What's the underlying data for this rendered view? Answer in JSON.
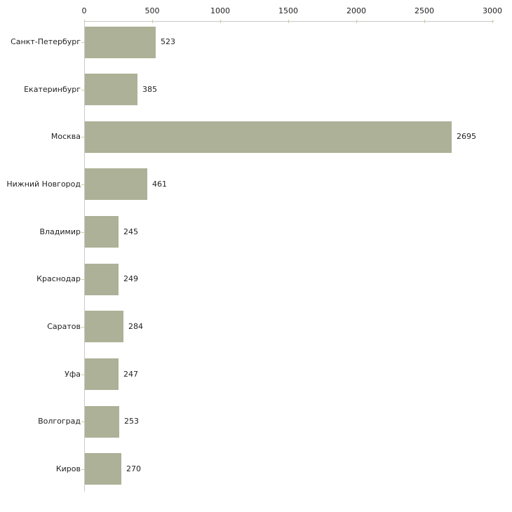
{
  "chart_data": {
    "type": "bar",
    "orientation": "horizontal",
    "title": "",
    "categories": [
      "Санкт-Петербург",
      "Екатеринбург",
      "Москва",
      "Нижний Новгород",
      "Владимир",
      "Краснодар",
      "Саратов",
      "Уфа",
      "Волгоград",
      "Киров"
    ],
    "values": [
      523,
      385,
      2695,
      461,
      245,
      249,
      284,
      247,
      253,
      270
    ],
    "xlim": [
      0,
      3000
    ],
    "x_ticks": [
      0,
      500,
      1000,
      1500,
      2000,
      2500,
      3000
    ],
    "axis_position": "top",
    "grid": false,
    "legend": "none",
    "value_labels": [
      "523",
      "385",
      "2695",
      "461",
      "245",
      "249",
      "284",
      "247",
      "253",
      "270"
    ],
    "colors": {
      "bar_fill": "#acb197",
      "axis_line": "#c9c9c9",
      "tick_mark": "#cdcba4",
      "tick_label_text": "#1f1f1f",
      "category_text": "#1f1f1f",
      "value_text": "#1f1f1f",
      "background": "#ffffff"
    }
  }
}
